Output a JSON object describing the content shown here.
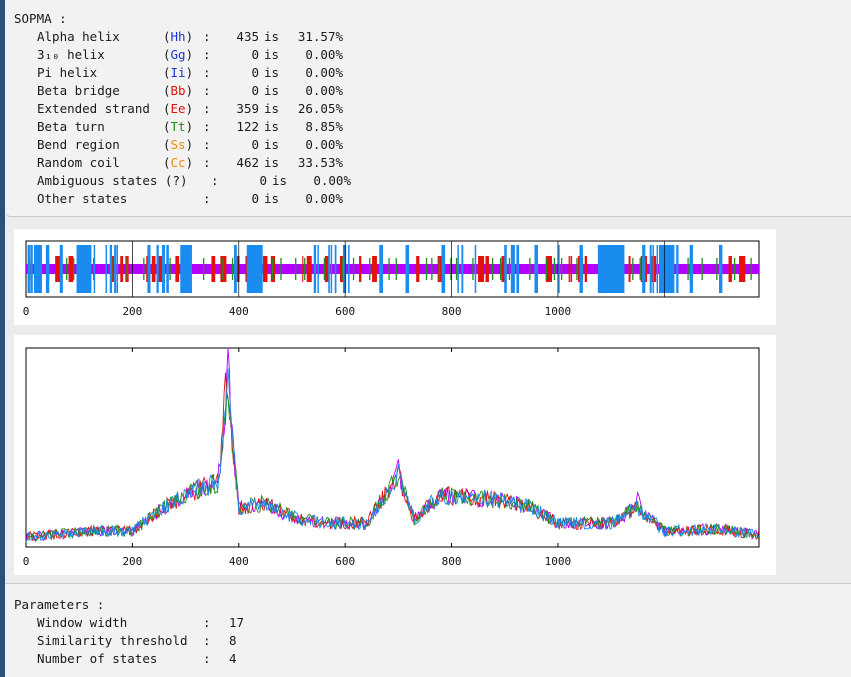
{
  "sopma": {
    "title": "SOPMA :",
    "rows": [
      {
        "label": "Alpha helix",
        "code": "Hh",
        "code_color": "#1a35d6",
        "colon": ":",
        "count": "435",
        "is": "is",
        "percent": "31.57%"
      },
      {
        "label": "3₁₀ helix",
        "code": "Gg",
        "code_color": "#1a35d6",
        "colon": ":",
        "count": "0",
        "is": "is",
        "percent": "0.00%"
      },
      {
        "label": "Pi helix",
        "code": "Ii",
        "code_color": "#1a35d6",
        "colon": ":",
        "count": "0",
        "is": "is",
        "percent": "0.00%"
      },
      {
        "label": "Beta bridge",
        "code": "Bb",
        "code_color": "#e3120b",
        "colon": ":",
        "count": "0",
        "is": "is",
        "percent": "0.00%"
      },
      {
        "label": "Extended strand",
        "code": "Ee",
        "code_color": "#e3120b",
        "colon": ":",
        "count": "359",
        "is": "is",
        "percent": "26.05%"
      },
      {
        "label": "Beta turn",
        "code": "Tt",
        "code_color": "#1f8f1f",
        "colon": ":",
        "count": "122",
        "is": "is",
        "percent": "8.85%"
      },
      {
        "label": "Bend region",
        "code": "Ss",
        "code_color": "#f08c00",
        "colon": ":",
        "count": "0",
        "is": "is",
        "percent": "0.00%"
      },
      {
        "label": "Random coil",
        "code": "Cc",
        "code_color": "#f08c00",
        "colon": ":",
        "count": "462",
        "is": "is",
        "percent": "33.53%"
      },
      {
        "label": "Ambiguous states (?)",
        "code": "",
        "code_color": "#1a1a1a",
        "colon": ":",
        "count": "0",
        "is": "is",
        "percent": "0.00%"
      },
      {
        "label": "Other states",
        "code": "",
        "code_color": "#1a1a1a",
        "colon": ":",
        "count": "0",
        "is": "is",
        "percent": "0.00%"
      }
    ]
  },
  "parameters": {
    "title": "Parameters :",
    "rows": [
      {
        "label": "Window width",
        "colon": ":",
        "value": "17"
      },
      {
        "label": "Similarity threshold",
        "colon": ":",
        "value": "8"
      },
      {
        "label": "Number of states",
        "colon": ":",
        "value": "4"
      }
    ]
  },
  "colors": {
    "helix": "#1a8cf0",
    "strand": "#e3120b",
    "turn": "#1f8f1f",
    "coil": "#b300ff"
  },
  "chart_data": [
    {
      "type": "heatmap",
      "x_ticks": [
        "0",
        "200",
        "400",
        "600",
        "800",
        "1000"
      ],
      "xlim": [
        0,
        1378
      ],
      "grid": true,
      "states": [
        "helix",
        "strand",
        "turn",
        "coil"
      ]
    },
    {
      "type": "line",
      "x_ticks": [
        "0",
        "200",
        "400",
        "600",
        "800",
        "1000"
      ],
      "xlim": [
        0,
        1378
      ],
      "grid": false,
      "series": [
        {
          "color": "#b300ff",
          "peaks": [
            [
              380,
              1.0
            ],
            [
              700,
              0.46
            ],
            [
              1150,
              0.27
            ]
          ]
        },
        {
          "color": "#e3120b",
          "peaks": [
            [
              375,
              0.88
            ],
            [
              700,
              0.4
            ]
          ]
        },
        {
          "color": "#1f8f1f",
          "peaks": [
            [
              380,
              0.66
            ],
            [
              705,
              0.38
            ]
          ]
        },
        {
          "color": "#1a8cf0",
          "peaks": [
            [
              380,
              0.88
            ],
            [
              700,
              0.42
            ]
          ]
        }
      ]
    }
  ]
}
